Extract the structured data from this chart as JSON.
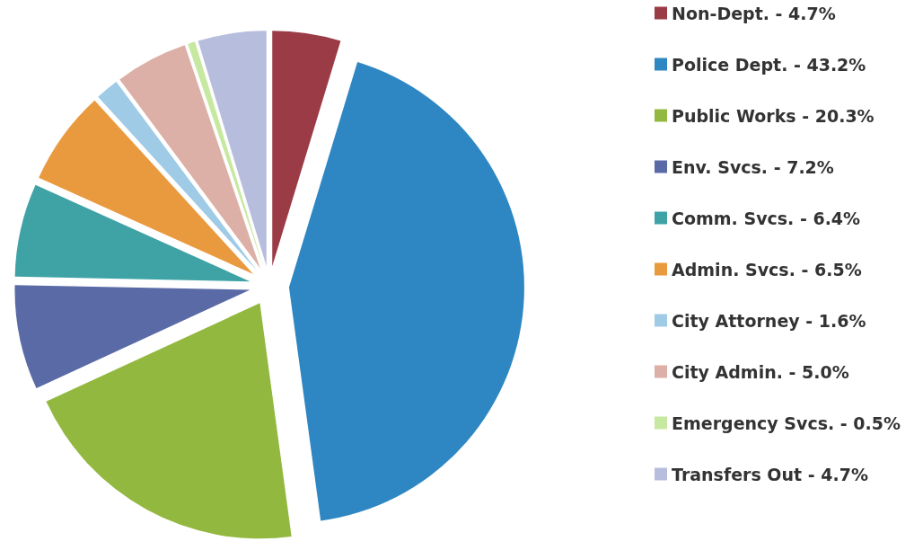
{
  "chart_data": {
    "type": "pie",
    "categories": [
      "Non-Dept.",
      "Police Dept.",
      "Public Works",
      "Env. Svcs.",
      "Comm. Svcs.",
      "Admin. Svcs.",
      "City Attorney",
      "City Admin.",
      "Emergency Svcs.",
      "Transfers Out"
    ],
    "values": [
      4.7,
      43.2,
      20.3,
      7.2,
      6.4,
      6.5,
      1.6,
      5.0,
      0.5,
      4.7
    ],
    "value_labels": [
      "4.7%",
      "43.2%",
      "20.3%",
      "7.2%",
      "6.4%",
      "6.5%",
      "1.6%",
      "5.0%",
      "0.5%",
      "4.7%"
    ],
    "colors": [
      "#9b3b45",
      "#2e87c2",
      "#93b840",
      "#5a6aa6",
      "#3fa3a6",
      "#e99a3f",
      "#9fcbe6",
      "#dcb0a6",
      "#c6e8a0",
      "#b7bddc"
    ],
    "legend": "right"
  }
}
